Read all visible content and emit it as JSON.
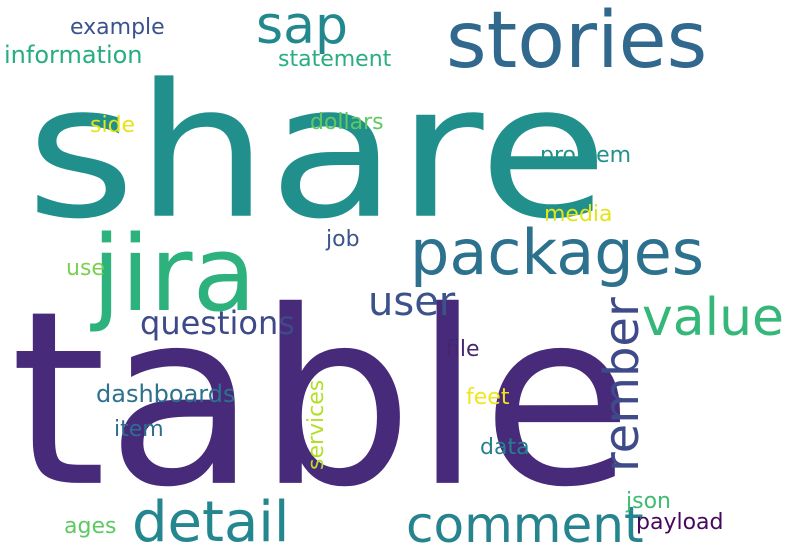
{
  "words": [
    {
      "id": "share",
      "text": "share",
      "color": "#21908d"
    },
    {
      "id": "table",
      "text": "table",
      "color": "#472a7a"
    },
    {
      "id": "stories",
      "text": "stories",
      "color": "#31688e"
    },
    {
      "id": "jira",
      "text": "jira",
      "color": "#2db27d"
    },
    {
      "id": "sap",
      "text": "sap",
      "color": "#23888e"
    },
    {
      "id": "packages",
      "text": "packages",
      "color": "#2c728e"
    },
    {
      "id": "value",
      "text": "value",
      "color": "#35b779"
    },
    {
      "id": "user",
      "text": "user",
      "color": "#3b528b"
    },
    {
      "id": "questions",
      "text": "questions",
      "color": "#3e4989"
    },
    {
      "id": "rember",
      "text": "rember",
      "color": "#3e4a89"
    },
    {
      "id": "detail",
      "text": "detail",
      "color": "#24868e"
    },
    {
      "id": "comment",
      "text": "comment",
      "color": "#25848e"
    },
    {
      "id": "example",
      "text": "example",
      "color": "#3b528b"
    },
    {
      "id": "information",
      "text": "information",
      "color": "#26ad81"
    },
    {
      "id": "statement",
      "text": "statement",
      "color": "#29af7f"
    },
    {
      "id": "side",
      "text": "side",
      "color": "#e7e419"
    },
    {
      "id": "dollars",
      "text": "dollars",
      "color": "#5ec962"
    },
    {
      "id": "problem",
      "text": "problem",
      "color": "#21918c"
    },
    {
      "id": "media",
      "text": "media",
      "color": "#e5e419"
    },
    {
      "id": "job",
      "text": "job",
      "color": "#39568c"
    },
    {
      "id": "use",
      "text": "use",
      "color": "#7ad151"
    },
    {
      "id": "file",
      "text": "file",
      "color": "#482475"
    },
    {
      "id": "dashboards",
      "text": "dashboards",
      "color": "#2c718e"
    },
    {
      "id": "services",
      "text": "services",
      "color": "#b5de2b"
    },
    {
      "id": "feet",
      "text": "feet",
      "color": "#f1e51d"
    },
    {
      "id": "item",
      "text": "item",
      "color": "#2f6c8e"
    },
    {
      "id": "data",
      "text": "data",
      "color": "#277f8e"
    },
    {
      "id": "json",
      "text": "json",
      "color": "#3fbc73"
    },
    {
      "id": "ages",
      "text": "ages",
      "color": "#5ec962"
    },
    {
      "id": "payload",
      "text": "payload",
      "color": "#46085c"
    }
  ]
}
